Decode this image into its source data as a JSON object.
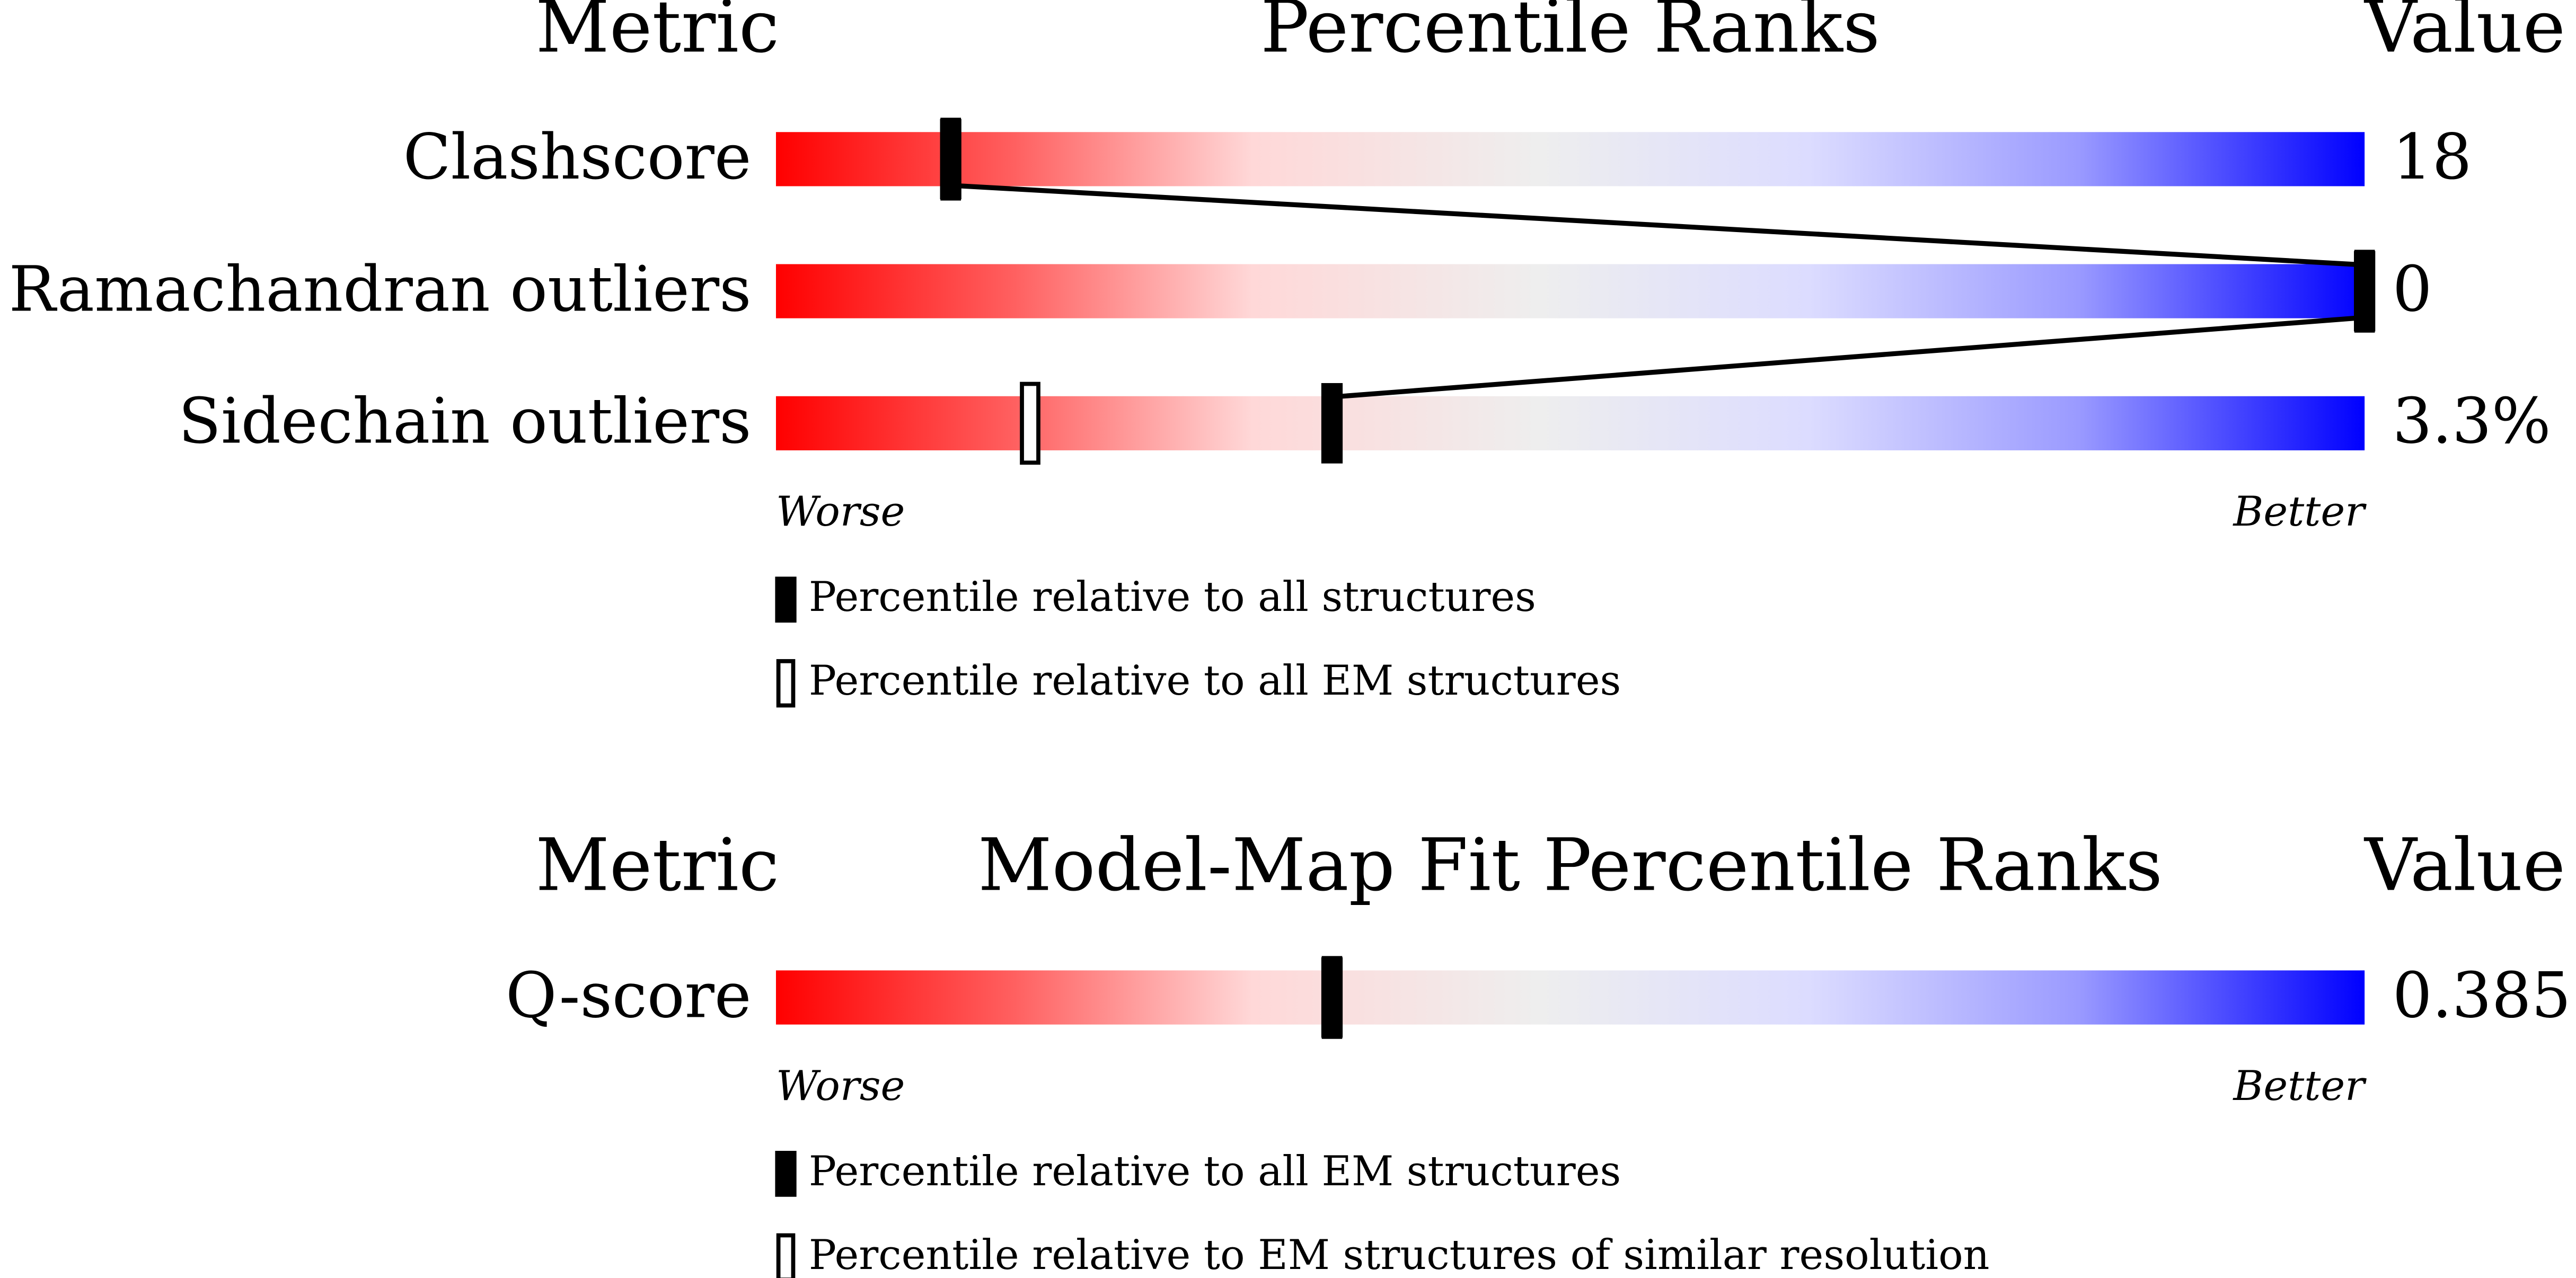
{
  "panels": [
    {
      "headers": {
        "metric": "Metric",
        "title": "Percentile Ranks",
        "value": "Value"
      },
      "xlim": [
        0,
        100
      ],
      "rows": [
        {
          "metric": "Clashscore",
          "value": 18,
          "percentiles": [
            11,
            11
          ]
        },
        {
          "metric": "Ramachandran outliers",
          "value": 0,
          "percentiles": [
            100,
            100
          ]
        },
        {
          "metric": "Sidechain outliers",
          "value": 3.3,
          "value_label": "3.3%",
          "percentiles": [
            35,
            16
          ]
        }
      ],
      "scale": {
        "worse": "Worse",
        "better": "Better"
      },
      "legend": [
        {
          "label": "Percentile relative to all structures",
          "marker": "filled"
        },
        {
          "label": "Percentile relative to all EM structures",
          "marker": "hollow"
        }
      ]
    },
    {
      "headers": {
        "metric": "Metric",
        "title": "Model-Map Fit Percentile Ranks",
        "value": "Value"
      },
      "xlim": [
        0,
        100
      ],
      "rows": [
        {
          "metric": "Q-score",
          "value": 0.385,
          "percentiles": [
            35,
            35
          ]
        }
      ],
      "scale": {
        "worse": "Worse",
        "better": "Better"
      },
      "legend": [
        {
          "label": "Percentile relative to all EM structures",
          "marker": "filled"
        },
        {
          "label": "Percentile relative to EM structures of similar resolution",
          "marker": "hollow"
        }
      ]
    }
  ]
}
